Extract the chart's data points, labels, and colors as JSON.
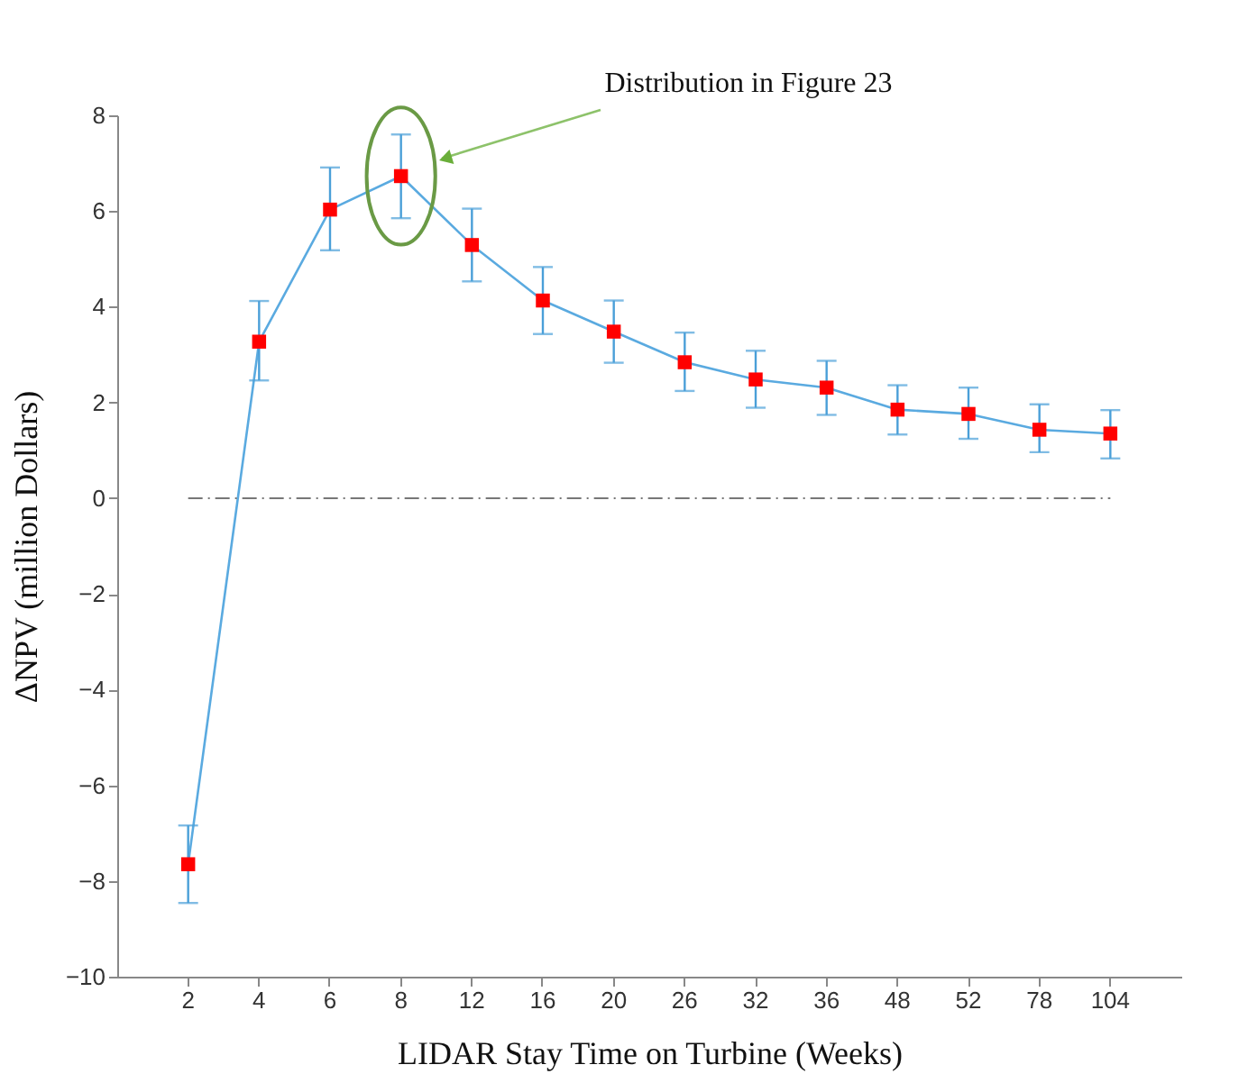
{
  "chart_data": {
    "type": "line",
    "xlabel": "LIDAR Stay Time on Turbine (Weeks)",
    "ylabel": "ΔNPV (million Dollars)",
    "categories": [
      "2",
      "4",
      "6",
      "8",
      "12",
      "16",
      "20",
      "26",
      "32",
      "36",
      "48",
      "52",
      "78",
      "104"
    ],
    "series": [
      {
        "color": "#5aaae0",
        "colors": [
          "#ff0000",
          "#ff0000",
          "#ff0000",
          "#ff0000",
          "#ff0000",
          "#ff0000",
          "#ff0000",
          "#ff0000",
          "#ff0000",
          "#ff0000",
          "#ff0000",
          "#ff0000",
          "#ff0000",
          "#ff0000"
        ],
        "values": [
          -7.65,
          3.27,
          6.03,
          6.73,
          5.29,
          4.13,
          3.48,
          2.84,
          2.48,
          2.31,
          1.85,
          1.76,
          1.43,
          1.35
        ],
        "errors": [
          [
            -8.46,
            -6.84
          ],
          [
            2.46,
            4.12
          ],
          [
            5.18,
            6.91
          ],
          [
            5.85,
            7.6
          ],
          [
            4.53,
            6.05
          ],
          [
            3.43,
            4.83
          ],
          [
            2.83,
            4.13
          ],
          [
            2.24,
            3.46
          ],
          [
            1.89,
            3.08
          ],
          [
            1.74,
            2.87
          ],
          [
            1.33,
            2.36
          ],
          [
            1.24,
            2.31
          ],
          [
            0.96,
            1.96
          ],
          [
            0.83,
            1.84
          ]
        ]
      }
    ],
    "ylim": [
      -10,
      8
    ],
    "yticks": [
      -10,
      -8,
      -6,
      -4,
      -2,
      0,
      2,
      4,
      6,
      8
    ],
    "marker": "square",
    "line_style": "solid",
    "grid": false,
    "ref_lines": [
      {
        "axis": "y",
        "value": 0,
        "color": "#777777",
        "line_style": "dashdot"
      }
    ],
    "annotations": [
      "Distribution in Figure 23"
    ]
  }
}
